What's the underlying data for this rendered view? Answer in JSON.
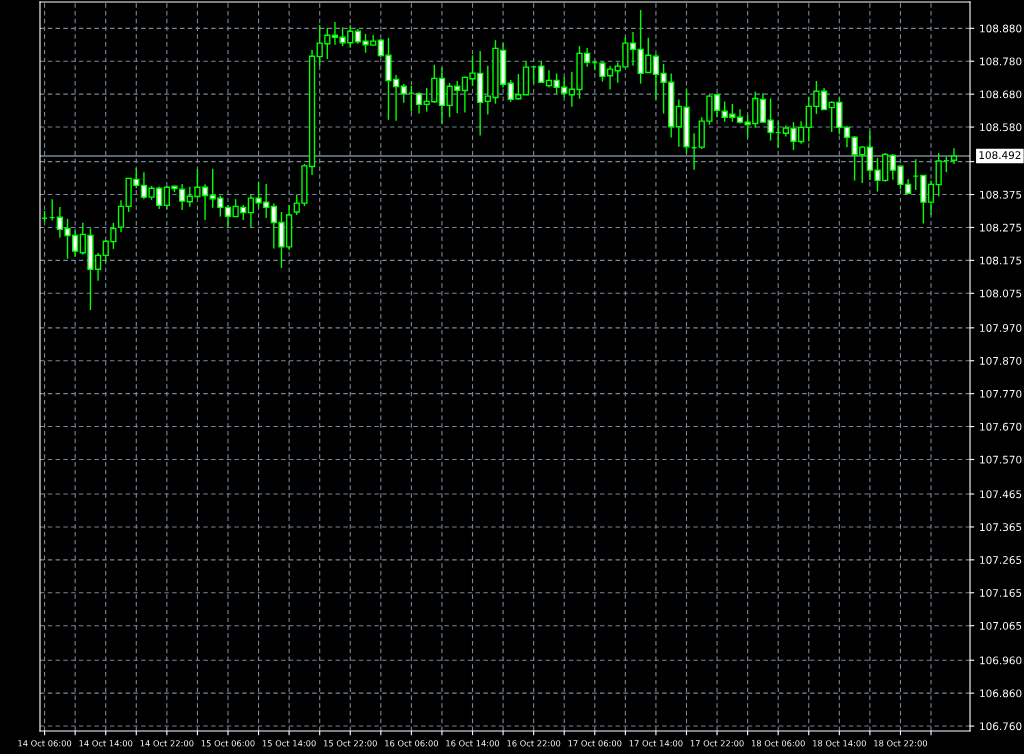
{
  "chart_data": {
    "type": "candlestick",
    "categories": [
      "14 Oct 06:00",
      null,
      null,
      null,
      null,
      null,
      null,
      null,
      "14 Oct 14:00",
      null,
      null,
      null,
      null,
      null,
      null,
      null,
      "14 Oct 22:00",
      null,
      null,
      null,
      null,
      null,
      null,
      null,
      "15 Oct 06:00",
      null,
      null,
      null,
      null,
      null,
      null,
      null,
      "15 Oct 14:00",
      null,
      null,
      null,
      null,
      null,
      null,
      null,
      "15 Oct 22:00",
      null,
      null,
      null,
      null,
      null,
      null,
      null,
      "16 Oct 06:00",
      null,
      null,
      null,
      null,
      null,
      null,
      null,
      "16 Oct 14:00",
      null,
      null,
      null,
      null,
      null,
      null,
      null,
      "16 Oct 22:00",
      null,
      null,
      null,
      null,
      null,
      null,
      null,
      "17 Oct 06:00",
      null,
      null,
      null,
      null,
      null,
      null,
      null,
      "17 Oct 14:00",
      null,
      null,
      null,
      null,
      null,
      null,
      null,
      "17 Oct 22:00",
      null,
      null,
      null,
      null,
      null,
      null,
      null,
      "18 Oct 06:00",
      null,
      null,
      null,
      null,
      null,
      null,
      null,
      "18 Oct 14:00",
      null,
      null,
      null,
      null,
      null,
      null,
      null,
      "18 Oct 22:00",
      null,
      null,
      null,
      null,
      null,
      null,
      null
    ],
    "ohlc": [
      [
        108.303,
        108.325,
        108.293,
        108.303
      ],
      [
        108.305,
        108.361,
        108.296,
        108.305
      ],
      [
        108.306,
        108.337,
        108.244,
        108.269
      ],
      [
        108.272,
        108.301,
        108.18,
        108.25
      ],
      [
        108.251,
        108.265,
        108.186,
        108.203
      ],
      [
        108.198,
        108.289,
        108.192,
        108.254
      ],
      [
        108.251,
        108.272,
        108.024,
        108.148
      ],
      [
        108.148,
        108.197,
        108.113,
        108.19
      ],
      [
        108.19,
        108.237,
        108.169,
        108.233
      ],
      [
        108.232,
        108.289,
        108.21,
        108.272
      ],
      [
        108.276,
        108.358,
        108.261,
        108.339
      ],
      [
        108.339,
        108.425,
        108.322,
        108.424
      ],
      [
        108.421,
        108.456,
        108.394,
        108.403
      ],
      [
        108.403,
        108.443,
        108.361,
        108.367
      ],
      [
        108.367,
        108.401,
        108.359,
        108.394
      ],
      [
        108.394,
        108.399,
        108.331,
        108.342
      ],
      [
        108.342,
        108.401,
        108.331,
        108.397
      ],
      [
        108.4,
        108.401,
        108.382,
        108.393
      ],
      [
        108.391,
        108.407,
        108.328,
        108.355
      ],
      [
        108.353,
        108.399,
        108.338,
        108.37
      ],
      [
        108.369,
        108.452,
        108.365,
        108.397
      ],
      [
        108.397,
        108.406,
        108.298,
        108.372
      ],
      [
        108.373,
        108.453,
        108.335,
        108.362
      ],
      [
        108.364,
        108.372,
        108.308,
        108.336
      ],
      [
        108.336,
        108.343,
        108.276,
        108.309
      ],
      [
        108.308,
        108.361,
        108.308,
        108.339
      ],
      [
        108.336,
        108.343,
        108.298,
        108.32
      ],
      [
        108.32,
        108.376,
        108.276,
        108.364
      ],
      [
        108.364,
        108.414,
        108.336,
        108.35
      ],
      [
        108.352,
        108.407,
        108.304,
        108.336
      ],
      [
        108.339,
        108.348,
        108.211,
        108.29
      ],
      [
        108.29,
        108.322,
        108.152,
        108.216
      ],
      [
        108.216,
        108.343,
        108.207,
        108.313
      ],
      [
        108.322,
        108.374,
        108.313,
        108.349
      ],
      [
        108.349,
        108.468,
        108.34,
        108.462
      ],
      [
        108.46,
        108.814,
        108.434,
        108.795
      ],
      [
        108.794,
        108.89,
        108.766,
        108.835
      ],
      [
        108.833,
        108.881,
        108.787,
        108.859
      ],
      [
        108.859,
        108.899,
        108.83,
        108.853
      ],
      [
        108.853,
        108.883,
        108.826,
        108.836
      ],
      [
        108.836,
        108.889,
        108.821,
        108.871
      ],
      [
        108.871,
        108.878,
        108.833,
        108.839
      ],
      [
        108.841,
        108.863,
        108.806,
        108.83
      ],
      [
        108.829,
        108.86,
        108.827,
        108.841
      ],
      [
        108.844,
        108.847,
        108.792,
        108.797
      ],
      [
        108.798,
        108.851,
        108.602,
        108.721
      ],
      [
        108.725,
        108.738,
        108.599,
        108.703
      ],
      [
        108.704,
        108.711,
        108.654,
        108.681
      ],
      [
        108.683,
        108.705,
        108.627,
        108.683
      ],
      [
        108.681,
        108.686,
        108.621,
        108.649
      ],
      [
        108.649,
        108.699,
        108.627,
        108.658
      ],
      [
        108.657,
        108.769,
        108.654,
        108.728
      ],
      [
        108.728,
        108.76,
        108.59,
        108.646
      ],
      [
        108.646,
        108.714,
        108.61,
        108.704
      ],
      [
        108.704,
        108.72,
        108.622,
        108.692
      ],
      [
        108.691,
        108.734,
        108.624,
        108.731
      ],
      [
        108.727,
        108.798,
        108.705,
        108.744
      ],
      [
        108.743,
        108.811,
        108.554,
        108.655
      ],
      [
        108.658,
        108.766,
        108.618,
        108.674
      ],
      [
        108.67,
        108.844,
        108.651,
        108.819
      ],
      [
        108.813,
        108.835,
        108.7,
        108.71
      ],
      [
        108.713,
        108.723,
        108.657,
        108.664
      ],
      [
        108.666,
        108.741,
        108.664,
        108.678
      ],
      [
        108.678,
        108.78,
        108.678,
        108.762
      ],
      [
        108.763,
        108.766,
        108.712,
        108.763
      ],
      [
        108.765,
        108.78,
        108.716,
        108.716
      ],
      [
        108.706,
        108.753,
        108.7,
        108.722
      ],
      [
        108.722,
        108.743,
        108.681,
        108.701
      ],
      [
        108.701,
        108.731,
        108.67,
        108.683
      ],
      [
        108.678,
        108.747,
        108.642,
        108.695
      ],
      [
        108.694,
        108.826,
        108.666,
        108.804
      ],
      [
        108.804,
        108.82,
        108.763,
        108.777
      ],
      [
        108.776,
        108.783,
        108.753,
        108.776
      ],
      [
        108.774,
        108.779,
        108.718,
        108.734
      ],
      [
        108.736,
        108.766,
        108.694,
        108.756
      ],
      [
        108.751,
        108.776,
        108.715,
        108.765
      ],
      [
        108.763,
        108.853,
        108.763,
        108.835
      ],
      [
        108.835,
        108.869,
        108.766,
        108.816
      ],
      [
        108.816,
        108.936,
        108.712,
        108.743
      ],
      [
        108.746,
        108.851,
        108.746,
        108.798
      ],
      [
        108.795,
        108.802,
        108.664,
        108.74
      ],
      [
        108.743,
        108.772,
        108.621,
        108.716
      ],
      [
        108.716,
        108.743,
        108.548,
        108.581
      ],
      [
        108.581,
        108.664,
        108.52,
        108.643
      ],
      [
        108.64,
        108.697,
        108.5,
        108.52
      ],
      [
        108.517,
        108.561,
        108.45,
        108.517
      ],
      [
        108.519,
        108.61,
        108.513,
        108.598
      ],
      [
        108.598,
        108.678,
        108.587,
        108.674
      ],
      [
        108.678,
        108.681,
        108.61,
        108.631
      ],
      [
        108.628,
        108.658,
        108.596,
        108.61
      ],
      [
        108.619,
        108.65,
        108.596,
        108.61
      ],
      [
        108.61,
        108.634,
        108.591,
        108.595
      ],
      [
        108.595,
        108.616,
        108.548,
        108.588
      ],
      [
        108.591,
        108.687,
        108.578,
        108.667
      ],
      [
        108.664,
        108.683,
        108.595,
        108.595
      ],
      [
        108.601,
        108.667,
        108.539,
        108.564
      ],
      [
        108.563,
        108.597,
        108.517,
        108.563
      ],
      [
        108.561,
        108.585,
        108.551,
        108.577
      ],
      [
        108.576,
        108.595,
        108.51,
        108.537
      ],
      [
        108.536,
        108.598,
        108.529,
        108.579
      ],
      [
        108.579,
        108.671,
        108.536,
        108.643
      ],
      [
        108.643,
        108.72,
        108.62,
        108.689
      ],
      [
        108.689,
        108.699,
        108.633,
        108.633
      ],
      [
        108.639,
        108.658,
        108.565,
        108.655
      ],
      [
        108.655,
        108.67,
        108.558,
        108.579
      ],
      [
        108.579,
        108.583,
        108.519,
        108.549
      ],
      [
        108.549,
        108.552,
        108.417,
        108.496
      ],
      [
        108.496,
        108.522,
        108.41,
        108.519
      ],
      [
        108.519,
        108.568,
        108.419,
        108.449
      ],
      [
        108.449,
        108.486,
        108.384,
        108.418
      ],
      [
        108.418,
        108.501,
        108.414,
        108.497
      ],
      [
        108.494,
        108.498,
        108.42,
        108.449
      ],
      [
        108.461,
        108.464,
        108.391,
        108.406
      ],
      [
        108.406,
        108.422,
        108.379,
        108.379
      ],
      [
        108.431,
        108.482,
        108.389,
        108.431
      ],
      [
        108.433,
        108.434,
        108.287,
        108.352
      ],
      [
        108.352,
        108.418,
        108.313,
        108.406
      ],
      [
        108.405,
        108.501,
        108.369,
        108.477
      ],
      [
        108.478,
        108.49,
        108.443,
        108.478
      ],
      [
        108.479,
        108.516,
        108.468,
        108.492
      ]
    ],
    "color": "#00ff00",
    "ylim": [
      106.745,
      108.96
    ],
    "yticks": [
      {
        "value": 106.76,
        "label": "106.760"
      },
      {
        "value": 106.86,
        "label": "106.860"
      },
      {
        "value": 106.96,
        "label": "106.960"
      },
      107.065,
      107.165,
      107.265,
      107.365,
      107.465,
      {
        "value": 107.57,
        "label": "107.570"
      },
      {
        "value": 107.67,
        "label": "107.670"
      },
      {
        "value": 107.77,
        "label": "107.770"
      },
      {
        "value": 107.87,
        "label": "107.870"
      },
      {
        "value": 107.97,
        "label": "107.970"
      },
      108.075,
      108.175,
      108.275,
      108.375,
      {
        "value": 108.475,
        "label": null
      },
      {
        "value": 108.58,
        "label": "108.580"
      },
      {
        "value": 108.68,
        "label": "108.680"
      },
      {
        "value": 108.78,
        "label": "108.780"
      },
      {
        "value": 108.88,
        "label": "108.880"
      }
    ],
    "ref_lines": [
      {
        "axis": "y",
        "value": 108.492,
        "label": "108.492",
        "color": "#778899"
      }
    ],
    "grid": true
  }
}
